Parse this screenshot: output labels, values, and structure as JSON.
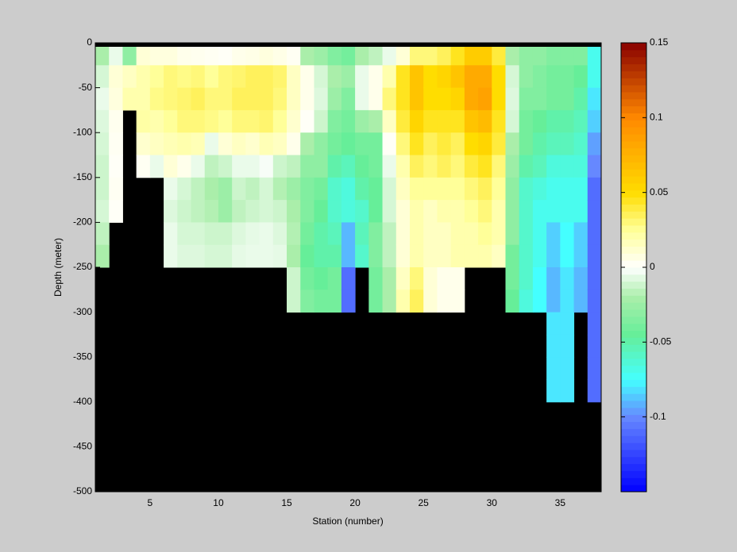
{
  "chart_data": {
    "type": "heatmap",
    "x_label": "Station (number)",
    "y_label": "Depth (meter)",
    "x_edges": [
      1,
      2,
      3,
      4,
      5,
      6,
      7,
      8,
      9,
      10,
      11,
      12,
      13,
      14,
      15,
      16,
      17,
      18,
      19,
      20,
      21,
      22,
      23,
      24,
      25,
      26,
      27,
      28,
      29,
      30,
      31,
      32,
      33,
      34,
      35,
      36,
      37,
      38
    ],
    "y_edges": [
      0,
      -25,
      -50,
      -75,
      -100,
      -125,
      -150,
      -175,
      -200,
      -225,
      -250,
      -275,
      -300,
      -325,
      -350,
      -375,
      -400
    ],
    "z": [
      [
        -0.02,
        -0.01,
        -0.005,
        -0.008,
        -0.01,
        -0.012,
        -0.012,
        -0.01,
        -0.015,
        -0.02
      ],
      [
        -0.005,
        0.01,
        0.008,
        0.004,
        0.003,
        0.002,
        0.003,
        0.002
      ],
      [
        -0.03,
        0.015,
        0.02
      ],
      [
        0.01,
        0.02,
        0.02,
        0.022,
        0.012,
        0.003
      ],
      [
        0.008,
        0.025,
        0.028,
        0.02,
        0.015,
        -0.005
      ],
      [
        0.008,
        0.03,
        0.03,
        0.025,
        0.018,
        0.01,
        -0.005,
        -0.008,
        -0.005,
        -0.005
      ],
      [
        0.005,
        0.028,
        0.032,
        0.03,
        0.02,
        0.005,
        -0.01,
        -0.012,
        -0.01,
        -0.008
      ],
      [
        0.004,
        0.03,
        0.035,
        0.03,
        0.018,
        -0.005,
        -0.015,
        -0.015,
        -0.01,
        -0.008
      ],
      [
        0.003,
        0.025,
        0.03,
        0.028,
        -0.005,
        -0.015,
        -0.02,
        -0.018,
        -0.012,
        -0.01
      ],
      [
        0.002,
        0.03,
        0.03,
        0.025,
        0.01,
        -0.012,
        -0.025,
        -0.025,
        -0.012,
        -0.01
      ],
      [
        0.005,
        0.032,
        0.035,
        0.03,
        0.015,
        -0.005,
        -0.012,
        -0.015,
        -0.008,
        -0.006
      ],
      [
        0.006,
        0.035,
        0.035,
        0.03,
        0.012,
        -0.005,
        -0.015,
        -0.012,
        -0.006,
        -0.005
      ],
      [
        0.008,
        0.035,
        0.035,
        0.032,
        0.018,
        -0.002,
        -0.01,
        -0.01,
        -0.005,
        -0.005
      ],
      [
        0.006,
        0.032,
        0.03,
        0.025,
        0.015,
        -0.012,
        -0.018,
        -0.012,
        -0.008,
        -0.006
      ],
      [
        0.003,
        0.015,
        0.015,
        0.012,
        0.005,
        -0.015,
        -0.025,
        -0.02,
        -0.018,
        -0.02,
        -0.012,
        -0.012
      ],
      [
        -0.02,
        0.005,
        0.005,
        0.002,
        -0.02,
        -0.03,
        -0.035,
        -0.035,
        -0.04,
        -0.045,
        -0.04,
        -0.035
      ],
      [
        -0.025,
        -0.01,
        -0.008,
        -0.012,
        -0.03,
        -0.03,
        -0.04,
        -0.045,
        -0.05,
        -0.05,
        -0.045,
        -0.04
      ],
      [
        -0.035,
        -0.02,
        -0.025,
        -0.035,
        -0.04,
        -0.05,
        -0.06,
        -0.06,
        -0.055,
        -0.05,
        -0.04,
        -0.04
      ],
      [
        -0.04,
        -0.025,
        -0.035,
        -0.04,
        -0.045,
        -0.055,
        -0.065,
        -0.065,
        -0.09,
        -0.09,
        -0.11,
        -0.11
      ],
      [
        -0.02,
        -0.005,
        -0.005,
        -0.025,
        -0.04,
        -0.045,
        -0.05,
        -0.06,
        -0.055,
        -0.06
      ],
      [
        -0.015,
        0.005,
        0.005,
        -0.02,
        -0.04,
        -0.04,
        -0.045,
        -0.045,
        -0.035,
        -0.035,
        -0.04,
        -0.04
      ],
      [
        -0.005,
        0.02,
        0.03,
        0.015,
        0.002,
        -0.005,
        -0.01,
        -0.01,
        -0.015,
        -0.015,
        -0.02,
        -0.02
      ],
      [
        0.01,
        0.045,
        0.045,
        0.04,
        0.03,
        0.02,
        0.015,
        0.01,
        0.01,
        0.01,
        0.015,
        0.02
      ],
      [
        0.03,
        0.065,
        0.065,
        0.055,
        0.045,
        0.035,
        0.025,
        0.02,
        0.02,
        0.02,
        0.03,
        0.035
      ],
      [
        0.03,
        0.05,
        0.05,
        0.045,
        0.035,
        0.03,
        0.025,
        0.015,
        0.015,
        0.015,
        0.01,
        0.01
      ],
      [
        0.035,
        0.055,
        0.05,
        0.045,
        0.04,
        0.035,
        0.025,
        0.02,
        0.015,
        0.015,
        0.005,
        0.005
      ],
      [
        0.045,
        0.065,
        0.055,
        0.045,
        0.035,
        0.03,
        0.025,
        0.02,
        0.02,
        0.02,
        0.005,
        0.005
      ],
      [
        0.06,
        0.08,
        0.08,
        0.065,
        0.05,
        0.04,
        0.03,
        0.025,
        0.02,
        0.02
      ],
      [
        0.06,
        0.08,
        0.085,
        0.07,
        0.055,
        0.045,
        0.035,
        0.03,
        0.025,
        0.02
      ],
      [
        0.04,
        0.05,
        0.05,
        0.045,
        0.04,
        0.03,
        0.025,
        0.02,
        0.02,
        0.015
      ],
      [
        -0.02,
        -0.01,
        -0.008,
        -0.01,
        -0.02,
        -0.025,
        -0.03,
        -0.03,
        -0.03,
        -0.04,
        -0.04,
        -0.045
      ],
      [
        -0.03,
        -0.03,
        -0.035,
        -0.04,
        -0.04,
        -0.05,
        -0.06,
        -0.06,
        -0.06,
        -0.06,
        -0.06,
        -0.065
      ],
      [
        -0.03,
        -0.035,
        -0.035,
        -0.045,
        -0.05,
        -0.055,
        -0.065,
        -0.07,
        -0.07,
        -0.07,
        -0.075,
        -0.075
      ],
      [
        -0.035,
        -0.04,
        -0.04,
        -0.05,
        -0.055,
        -0.065,
        -0.07,
        -0.07,
        -0.085,
        -0.085,
        -0.09,
        -0.09,
        -0.08,
        -0.08,
        -0.08,
        -0.08
      ],
      [
        -0.035,
        -0.04,
        -0.04,
        -0.05,
        -0.055,
        -0.065,
        -0.07,
        -0.07,
        -0.075,
        -0.075,
        -0.08,
        -0.08,
        -0.08,
        -0.08,
        -0.08,
        -0.08
      ],
      [
        -0.035,
        -0.045,
        -0.05,
        -0.055,
        -0.06,
        -0.065,
        -0.07,
        -0.07,
        -0.085,
        -0.085,
        -0.09,
        -0.09
      ],
      [
        -0.07,
        -0.07,
        -0.08,
        -0.085,
        -0.095,
        -0.1,
        -0.11,
        -0.11,
        -0.11,
        -0.11,
        -0.11,
        -0.11,
        -0.11,
        -0.11,
        -0.11,
        -0.11
      ]
    ],
    "xlim": [
      1,
      38
    ],
    "xticks": [
      5,
      10,
      15,
      20,
      25,
      30,
      35
    ],
    "ylim": [
      -500,
      0
    ],
    "yticks": [
      -500,
      -450,
      -400,
      -350,
      -300,
      -250,
      -200,
      -150,
      -100,
      -50,
      0
    ],
    "clim": [
      -0.15,
      0.15
    ],
    "cticks": [
      -0.1,
      -0.05,
      0,
      0.05,
      0.1,
      0.15
    ],
    "nan_color": "#000000",
    "colormap": [
      {
        "value": -0.15,
        "color": "#0000ff"
      },
      {
        "value": -0.1,
        "color": "#6688ff"
      },
      {
        "value": -0.075,
        "color": "#44ffff"
      },
      {
        "value": -0.045,
        "color": "#66ee99"
      },
      {
        "value": -0.02,
        "color": "#aaeeaa"
      },
      {
        "value": 0,
        "color": "#ffffff"
      },
      {
        "value": 0.025,
        "color": "#ffff99"
      },
      {
        "value": 0.05,
        "color": "#ffdd00"
      },
      {
        "value": 0.1,
        "color": "#ff8800"
      },
      {
        "value": 0.15,
        "color": "#880000"
      }
    ]
  }
}
